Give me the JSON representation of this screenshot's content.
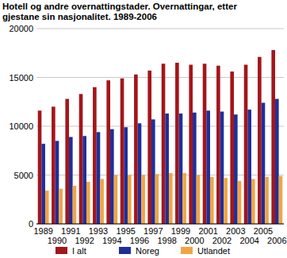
{
  "chart_data": {
    "type": "bar",
    "title": "Hotell og andre overnattingstader. Overnattingar, etter gjestane sin nasjonalitet. 1989-2006",
    "categories": [
      "1989",
      "1990",
      "1991",
      "1992",
      "1993",
      "1994",
      "1995",
      "1996",
      "1997",
      "1998",
      "1999",
      "2000",
      "2001",
      "2002",
      "2003",
      "2004",
      "2005",
      "2006"
    ],
    "series": [
      {
        "name": "I alt",
        "color": "#a3161b",
        "values": [
          11600,
          12000,
          12800,
          13300,
          14000,
          14700,
          14900,
          15300,
          15700,
          16400,
          16500,
          16300,
          16400,
          16200,
          15600,
          16300,
          17100,
          17800
        ]
      },
      {
        "name": "Noreg",
        "color": "#1f2f9a",
        "values": [
          8200,
          8500,
          8900,
          9000,
          9400,
          9700,
          9900,
          10300,
          10700,
          11300,
          11300,
          11400,
          11600,
          11500,
          11200,
          11700,
          12400,
          12800
        ]
      },
      {
        "name": "Utlandet",
        "color": "#f2a444",
        "values": [
          3400,
          3600,
          3900,
          4300,
          4600,
          5000,
          5000,
          5000,
          5100,
          5200,
          5200,
          5000,
          4800,
          4700,
          4400,
          4600,
          4800,
          4900
        ]
      }
    ],
    "ylim": [
      0,
      20000
    ],
    "yticks": [
      0,
      5000,
      10000,
      15000,
      20000
    ],
    "grid": true,
    "legend": "bottom"
  }
}
